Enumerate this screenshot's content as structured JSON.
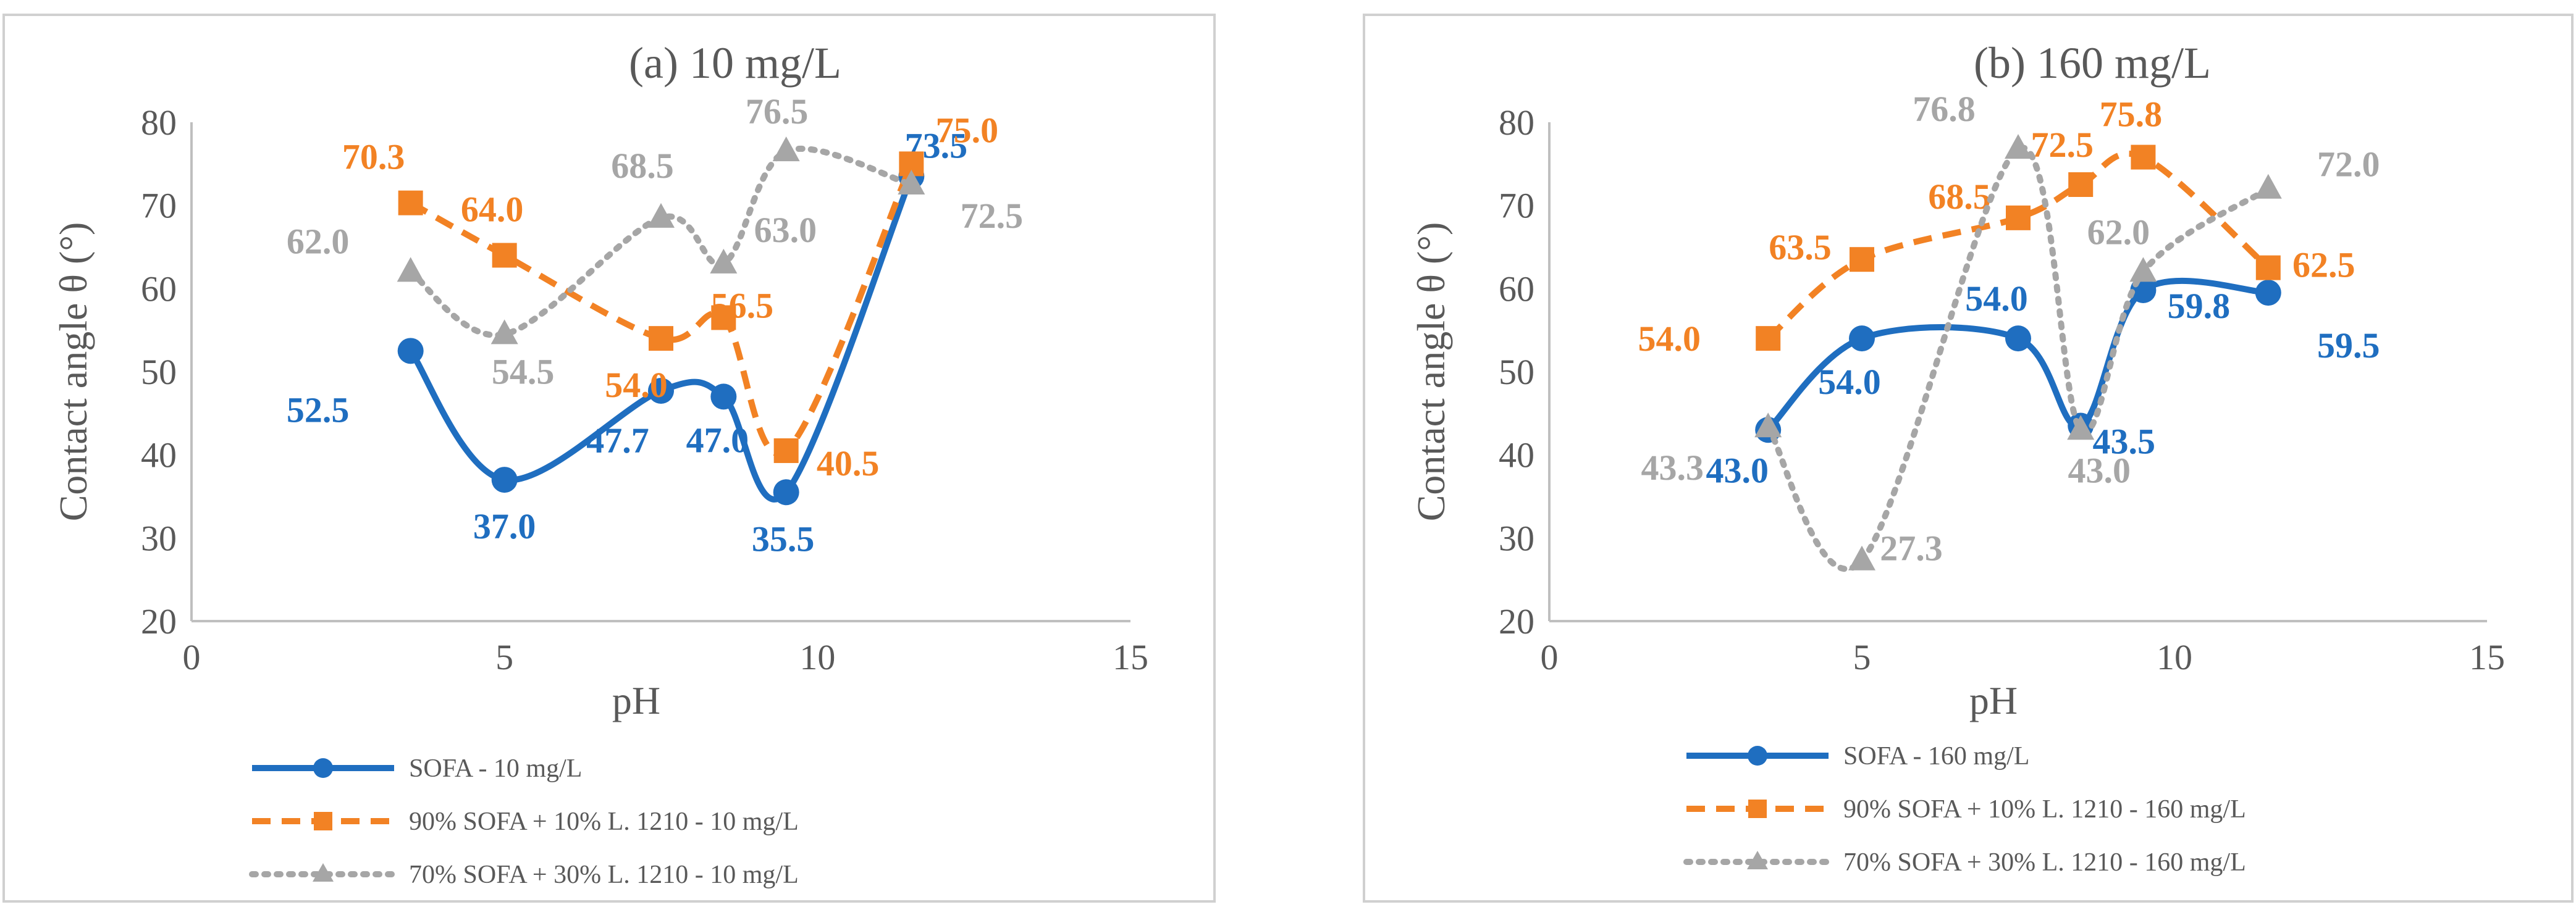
{
  "chart_data": [
    {
      "type": "line",
      "title": "(a) 10 mg/L",
      "xlabel": "pH",
      "ylabel": "Contact angle θ (°)",
      "xlim": [
        0,
        15
      ],
      "ylim": [
        20,
        80
      ],
      "xticks": [
        "0",
        "5",
        "10",
        "15"
      ],
      "yticks": [
        "20",
        "30",
        "40",
        "50",
        "60",
        "70",
        "80"
      ],
      "grid": false,
      "legend_position": "bottom",
      "series": [
        {
          "name": "SOFA - 10 mg/L",
          "color": "#1F6EC0",
          "style": "solid",
          "marker": "circle",
          "x": [
            3.5,
            5.0,
            7.5,
            8.5,
            9.5,
            11.5
          ],
          "values": [
            52.5,
            37.0,
            47.7,
            47.0,
            35.5,
            73.5
          ],
          "labels": [
            "52.5",
            "37.0",
            "47.7",
            "47.0",
            "35.5",
            "73.5"
          ]
        },
        {
          "name": "90% SOFA + 10% L. 1210 - 10 mg/L",
          "color": "#F28224",
          "style": "dashed",
          "marker": "square",
          "x": [
            3.5,
            5.0,
            7.5,
            8.5,
            9.5,
            11.5
          ],
          "values": [
            70.3,
            64.0,
            54.0,
            56.5,
            40.5,
            75.0
          ],
          "labels": [
            "70.3",
            "64.0",
            "54.0",
            "56.5",
            "40.5",
            "75.0"
          ]
        },
        {
          "name": "70% SOFA + 30% L. 1210 - 10 mg/L",
          "color": "#A6A6A6",
          "style": "dotted",
          "marker": "triangle",
          "x": [
            3.5,
            5.0,
            7.5,
            8.5,
            9.5,
            11.5
          ],
          "values": [
            62.0,
            54.5,
            68.5,
            63.0,
            76.5,
            72.5
          ],
          "labels": [
            "62.0",
            "54.5",
            "68.5",
            "63.0",
            "76.5",
            "72.5"
          ]
        }
      ]
    },
    {
      "type": "line",
      "title": "(b) 160 mg/L",
      "xlabel": "pH",
      "ylabel": "Contact angle θ (°)",
      "xlim": [
        0,
        15
      ],
      "ylim": [
        20,
        80
      ],
      "xticks": [
        "0",
        "5",
        "10",
        "15"
      ],
      "yticks": [
        "20",
        "30",
        "40",
        "50",
        "60",
        "70",
        "80"
      ],
      "grid": false,
      "legend_position": "bottom",
      "series": [
        {
          "name": "SOFA - 160 mg/L",
          "color": "#1F6EC0",
          "style": "solid",
          "marker": "circle",
          "x": [
            3.5,
            5.0,
            7.5,
            8.5,
            9.5,
            11.5
          ],
          "values": [
            43.0,
            54.0,
            54.0,
            43.5,
            59.8,
            59.5
          ],
          "labels": [
            "43.0",
            "54.0",
            "54.0",
            "43.5",
            "59.8",
            "59.5"
          ]
        },
        {
          "name": "90% SOFA + 10% L. 1210 - 160 mg/L",
          "color": "#F28224",
          "style": "dashed",
          "marker": "square",
          "x": [
            3.5,
            5.0,
            7.5,
            8.5,
            9.5,
            11.5
          ],
          "values": [
            54.0,
            63.5,
            68.5,
            72.5,
            75.8,
            62.5
          ],
          "labels": [
            "54.0",
            "63.5",
            "68.5",
            "72.5",
            "75.8",
            "62.5"
          ]
        },
        {
          "name": "70% SOFA + 30% L. 1210 - 160 mg/L",
          "color": "#A6A6A6",
          "style": "dotted",
          "marker": "triangle",
          "x": [
            3.5,
            5.0,
            7.5,
            8.5,
            9.5,
            11.5
          ],
          "values": [
            43.3,
            27.3,
            76.8,
            43.0,
            62.0,
            72.0
          ],
          "labels": [
            "43.3",
            "27.3",
            "76.8",
            "43.0",
            "62.0",
            "72.0"
          ]
        }
      ]
    }
  ]
}
